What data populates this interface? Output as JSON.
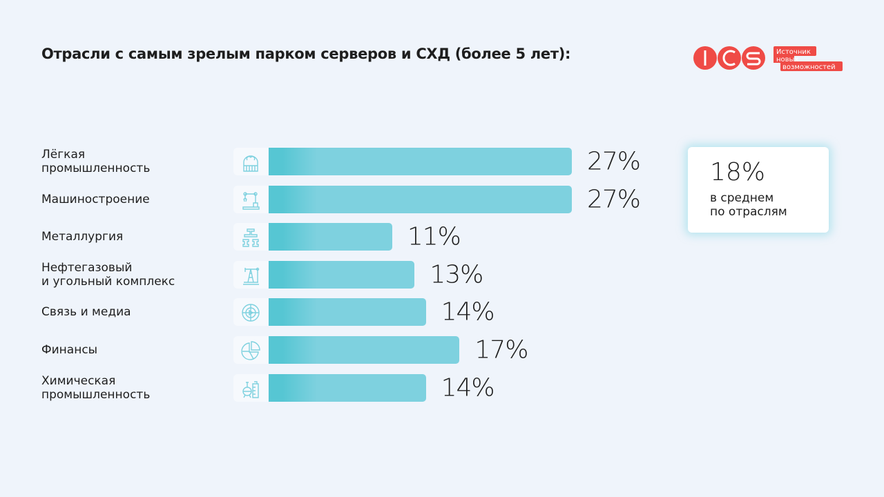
{
  "title": "Отрасли с самым зрелым парком серверов и СХД (более 5 лет):",
  "logo": {
    "text": "ICS",
    "tagline": [
      "Источник",
      "новых",
      "возможностей"
    ],
    "color": "#ef4b46"
  },
  "average": {
    "value": "18%",
    "label_line1": "в среднем",
    "label_line2": "по отраслям"
  },
  "colors": {
    "bar": "#7ed1df",
    "bar_start": "#56c6d3",
    "icon": "#7ed1df"
  },
  "chart_data": {
    "type": "bar",
    "orientation": "horizontal",
    "title": "Отрасли с самым зрелым парком серверов и СХД (более 5 лет):",
    "unit": "%",
    "xlim": [
      0,
      27
    ],
    "categories": [
      {
        "label": [
          "Лёгкая",
          "промышленность"
        ],
        "icon": "knit-hat-icon",
        "value": 27,
        "value_label": "27%"
      },
      {
        "label": [
          "Машиностроение"
        ],
        "icon": "robot-arm-icon",
        "value": 27,
        "value_label": "27%"
      },
      {
        "label": [
          "Металлургия"
        ],
        "icon": "steel-beam-icon",
        "value": 11,
        "value_label": "11%"
      },
      {
        "label": [
          "Нефтегазовый",
          "и угольный комплекс"
        ],
        "icon": "oil-pump-icon",
        "value": 13,
        "value_label": "13%"
      },
      {
        "label": [
          "Связь и медиа"
        ],
        "icon": "globe-play-icon",
        "value": 14,
        "value_label": "14%"
      },
      {
        "label": [
          "Финансы"
        ],
        "icon": "pie-chart-icon",
        "value": 17,
        "value_label": "17%"
      },
      {
        "label": [
          "Химическая",
          "промышленность"
        ],
        "icon": "chemical-plant-icon",
        "value": 14,
        "value_label": "14%"
      }
    ]
  }
}
